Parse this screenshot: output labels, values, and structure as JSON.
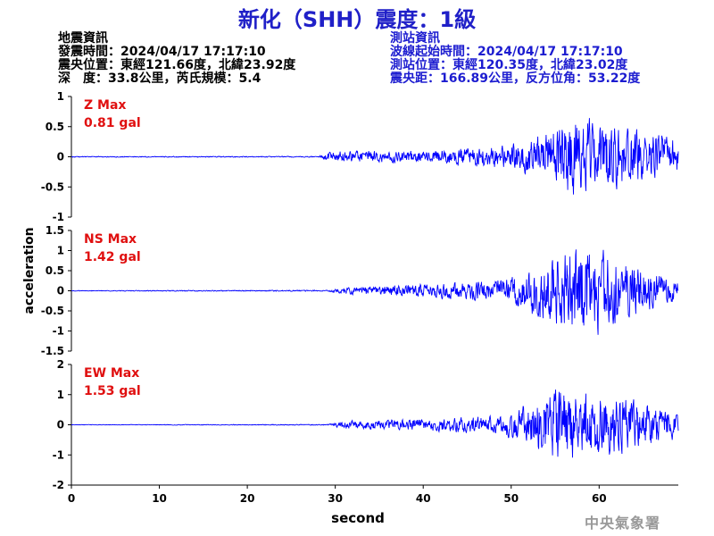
{
  "title": "新化（SHH）震度：1級",
  "earthquake_info": {
    "heading": "地震資訊",
    "time": "發震時間：2024/04/17 17:17:10",
    "epicenter": "震央位置：東經121.66度，北緯23.92度",
    "depth_magnitude": "深　度：33.8公里，芮氏規模：5.4"
  },
  "station_info": {
    "heading": "測站資訊",
    "waveform_start": "波線起始時間：2024/04/17 17:17:10",
    "location": "測站位置：東經120.35度，北緯23.02度",
    "distance_azimuth": "震央距：166.89公里，反方位角：53.22度"
  },
  "agency": "中央氣象署",
  "colors": {
    "trace": "#0000ff",
    "label": "#e01010",
    "title": "#2020c8"
  },
  "chart_data": {
    "type": "line",
    "xlabel": "second",
    "ylabel": "acceleration",
    "xlim": [
      0,
      69
    ],
    "xticks": [
      "0",
      "10",
      "20",
      "30",
      "40",
      "50",
      "60"
    ],
    "panels": [
      {
        "name": "Z",
        "label": "Z Max",
        "max_value": "0.81 gal",
        "ylim": [
          -1,
          1
        ],
        "yticks": [
          "1",
          "0.5",
          "0",
          "-0.5",
          "-1"
        ],
        "ytick_values": [
          1,
          0.5,
          0,
          -0.5,
          -1
        ],
        "peak": 0.81,
        "envelope": [
          [
            0,
            0.01
          ],
          [
            28,
            0.01
          ],
          [
            29,
            0.08
          ],
          [
            31,
            0.12
          ],
          [
            40,
            0.12
          ],
          [
            48,
            0.22
          ],
          [
            52,
            0.35
          ],
          [
            55,
            0.6
          ],
          [
            57,
            0.81
          ],
          [
            60,
            0.7
          ],
          [
            64,
            0.55
          ],
          [
            67,
            0.45
          ],
          [
            69,
            0.35
          ]
        ]
      },
      {
        "name": "NS",
        "label": "NS Max",
        "max_value": "1.42 gal",
        "ylim": [
          -1.5,
          1.5
        ],
        "yticks": [
          "1.5",
          "1",
          "0.5",
          "0",
          "-0.5",
          "-1",
          "-1.5"
        ],
        "ytick_values": [
          1.5,
          1,
          0.5,
          0,
          -0.5,
          -1,
          -1.5
        ],
        "peak": 1.42,
        "envelope": [
          [
            0,
            0.01
          ],
          [
            29,
            0.02
          ],
          [
            31,
            0.1
          ],
          [
            40,
            0.2
          ],
          [
            48,
            0.3
          ],
          [
            51,
            0.5
          ],
          [
            54,
            1.0
          ],
          [
            56,
            1.3
          ],
          [
            59,
            1.42
          ],
          [
            62,
            1.0
          ],
          [
            65,
            0.6
          ],
          [
            69,
            0.35
          ]
        ]
      },
      {
        "name": "EW",
        "label": "EW Max",
        "max_value": "1.53 gal",
        "ylim": [
          -2,
          2
        ],
        "yticks": [
          "2",
          "1",
          "0",
          "-1",
          "-2"
        ],
        "ytick_values": [
          2,
          1,
          0,
          -1,
          -2
        ],
        "peak": 1.53,
        "envelope": [
          [
            0,
            0.01
          ],
          [
            29,
            0.02
          ],
          [
            31,
            0.15
          ],
          [
            40,
            0.25
          ],
          [
            48,
            0.35
          ],
          [
            51,
            0.7
          ],
          [
            54,
            1.2
          ],
          [
            56,
            1.53
          ],
          [
            60,
            1.3
          ],
          [
            64,
            1.0
          ],
          [
            67,
            0.7
          ],
          [
            69,
            0.5
          ]
        ]
      }
    ]
  }
}
